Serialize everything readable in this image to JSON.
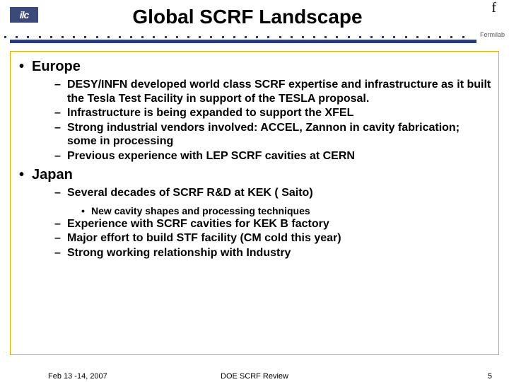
{
  "header": {
    "logo_text": "ilc",
    "title": "Global SCRF Landscape",
    "f_mark": "f",
    "lab_name": "Fermilab"
  },
  "colors": {
    "accent": "#2a3a7a",
    "border": "#e0b000",
    "logo_bg": "#3b4a7a"
  },
  "regions": [
    {
      "name": "Europe",
      "items": [
        "DESY/INFN developed world class SCRF expertise and infrastructure as it built the Tesla Test Facility in support of the TESLA proposal.",
        "Infrastructure is being expanded to support the XFEL",
        "Strong industrial vendors involved: ACCEL, Zannon in cavity fabrication; some in processing",
        "Previous experience with LEP SCRF cavities at CERN"
      ]
    },
    {
      "name": "Japan",
      "items_before_sub": [
        "Several decades of SCRF R&D at KEK ( Saito)"
      ],
      "sub_items": [
        "New cavity shapes and processing techniques"
      ],
      "items_after_sub": [
        "Experience with SCRF cavities for KEK B factory",
        "Major effort to build STF facility (CM cold this year)",
        "Strong working relationship with Industry"
      ]
    }
  ],
  "footer": {
    "date": "Feb 13 -14, 2007",
    "center": "DOE SCRF Review",
    "page": "5"
  },
  "dot_count": 41
}
